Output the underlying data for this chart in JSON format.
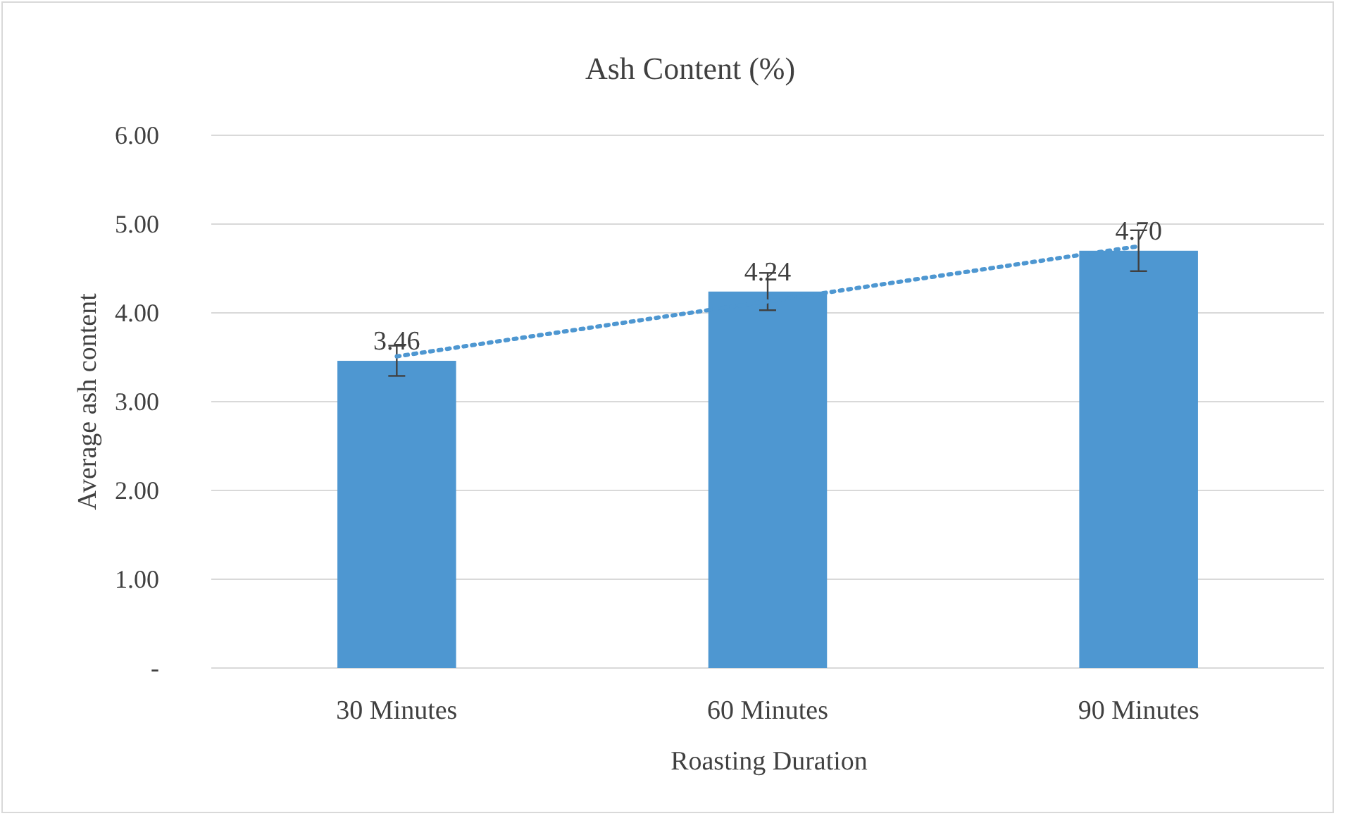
{
  "chart_data": {
    "type": "bar",
    "title": "Ash Content (%)",
    "xlabel": "Roasting Duration",
    "ylabel": "Average ash content",
    "categories": [
      "30 Minutes",
      "60 Minutes",
      "90 Minutes"
    ],
    "series": [
      {
        "color": "#4e97d1",
        "values": [
          3.46,
          4.24,
          4.7
        ],
        "value_labels": [
          "3.46",
          "4.24",
          "4.70"
        ],
        "errors": [
          0.17,
          0.21,
          0.23
        ]
      },
      {
        "type": "line",
        "color": "#4e97d1",
        "line_style": "dotted",
        "x": [
          "30 Minutes",
          "90 Minutes"
        ],
        "values": [
          3.51,
          4.75
        ]
      }
    ],
    "ylim": [
      0,
      6
    ],
    "yticks": [
      {
        "value": 0,
        "label": "-"
      },
      {
        "value": 1,
        "label": "1.00"
      },
      {
        "value": 2,
        "label": "2.00"
      },
      {
        "value": 3,
        "label": "3.00"
      },
      {
        "value": 4,
        "label": "4.00"
      },
      {
        "value": 5,
        "label": "5.00"
      },
      {
        "value": 6,
        "label": "6.00"
      }
    ],
    "grid": "y"
  }
}
